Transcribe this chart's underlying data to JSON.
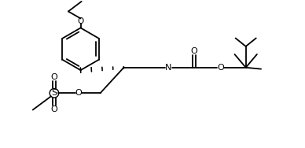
{
  "bg_color": "#ffffff",
  "line_color": "#000000",
  "lw": 1.3,
  "figsize": [
    3.88,
    1.88
  ],
  "dpi": 100,
  "xlim": [
    0,
    10
  ],
  "ylim": [
    0,
    5
  ]
}
